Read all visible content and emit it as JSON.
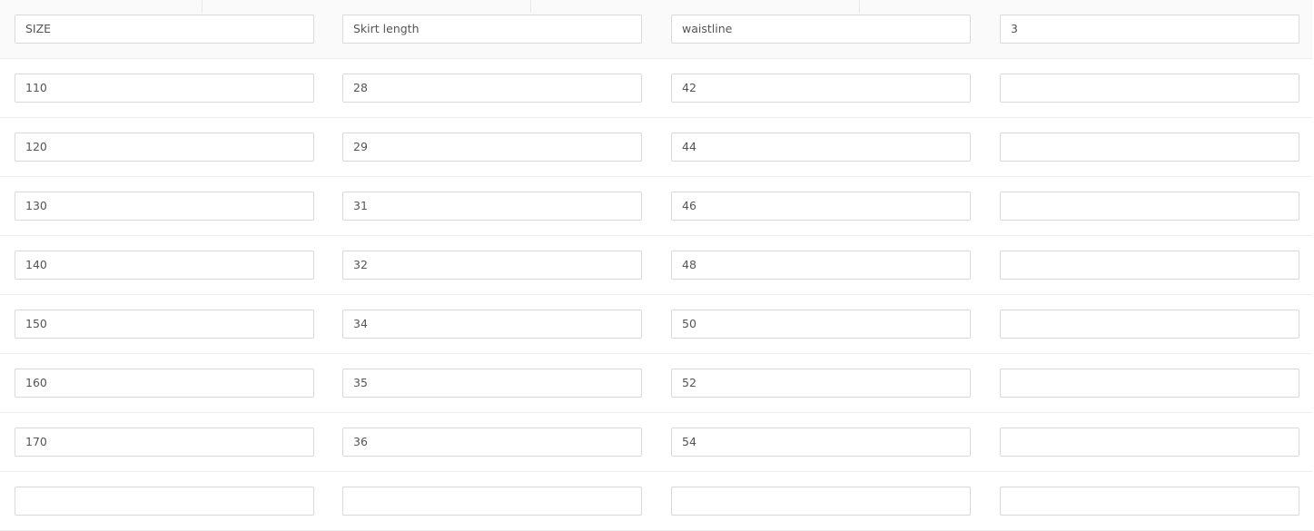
{
  "table": {
    "header": [
      "SIZE",
      "Skirt length",
      "waistline",
      "3"
    ],
    "rows": [
      [
        "110",
        "28",
        "42",
        ""
      ],
      [
        "120",
        "29",
        "44",
        ""
      ],
      [
        "130",
        "31",
        "46",
        ""
      ],
      [
        "140",
        "32",
        "48",
        ""
      ],
      [
        "150",
        "34",
        "50",
        ""
      ],
      [
        "160",
        "35",
        "52",
        ""
      ],
      [
        "170",
        "36",
        "54",
        ""
      ],
      [
        "",
        "",
        "",
        ""
      ]
    ]
  }
}
